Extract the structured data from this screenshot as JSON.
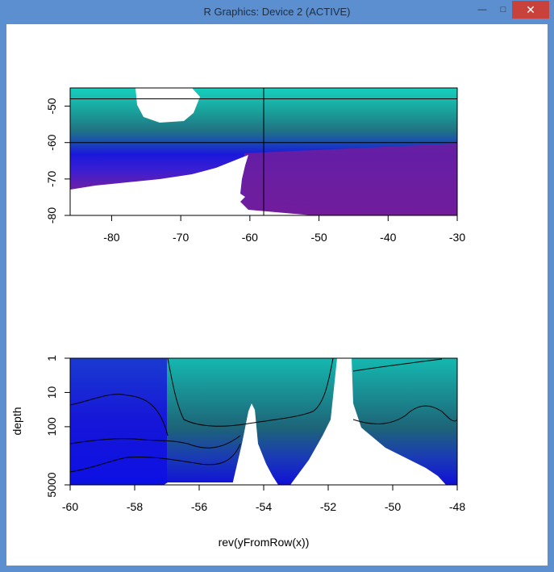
{
  "window": {
    "title": "R Graphics: Device 2 (ACTIVE)",
    "controls": {
      "minimize": "—",
      "maximize": "□",
      "close": "✕"
    }
  },
  "chart_data": [
    {
      "type": "heatmap",
      "title": "",
      "xlabel": "",
      "ylabel": "",
      "xlim": [
        -86,
        -30
      ],
      "ylim": [
        -80,
        -45
      ],
      "x_ticks": [
        -80,
        -70,
        -60,
        -50,
        -40,
        -30
      ],
      "y_ticks": [
        -50,
        -60,
        -70,
        -80
      ],
      "x_tick_labels": [
        "-80",
        "-70",
        "-60",
        "-50",
        "-40",
        "-30"
      ],
      "y_tick_labels": [
        "-50",
        "-60",
        "-70",
        "-80"
      ],
      "reference_lines": {
        "horizontal": [
          -48,
          -60
        ],
        "vertical": [
          -58
        ]
      },
      "colors": {
        "north": "#12c8b4",
        "middle": "#1d7a86",
        "band": "#1818d8",
        "south": "#701c9c",
        "land": "#ffffff"
      },
      "grid": false
    },
    {
      "type": "heatmap",
      "title": "",
      "xlabel": "rev(yFromRow(x))",
      "ylabel": "depth",
      "xlim": [
        -60,
        -48
      ],
      "y_scale": "log",
      "ylim": [
        5000,
        1
      ],
      "x_ticks": [
        -60,
        -58,
        -56,
        -54,
        -52,
        -50,
        -48
      ],
      "y_ticks": [
        1,
        10,
        100,
        5000
      ],
      "x_tick_labels": [
        "-60",
        "-58",
        "-56",
        "-54",
        "-52",
        "-50",
        "-48"
      ],
      "y_tick_labels": [
        "1",
        "10",
        "100",
        "5000"
      ],
      "colors": {
        "deep": "#1010d8",
        "mid": "#1d6a7a",
        "surface": "#14b8b0",
        "no_data": "#ffffff"
      },
      "grid": false
    }
  ]
}
